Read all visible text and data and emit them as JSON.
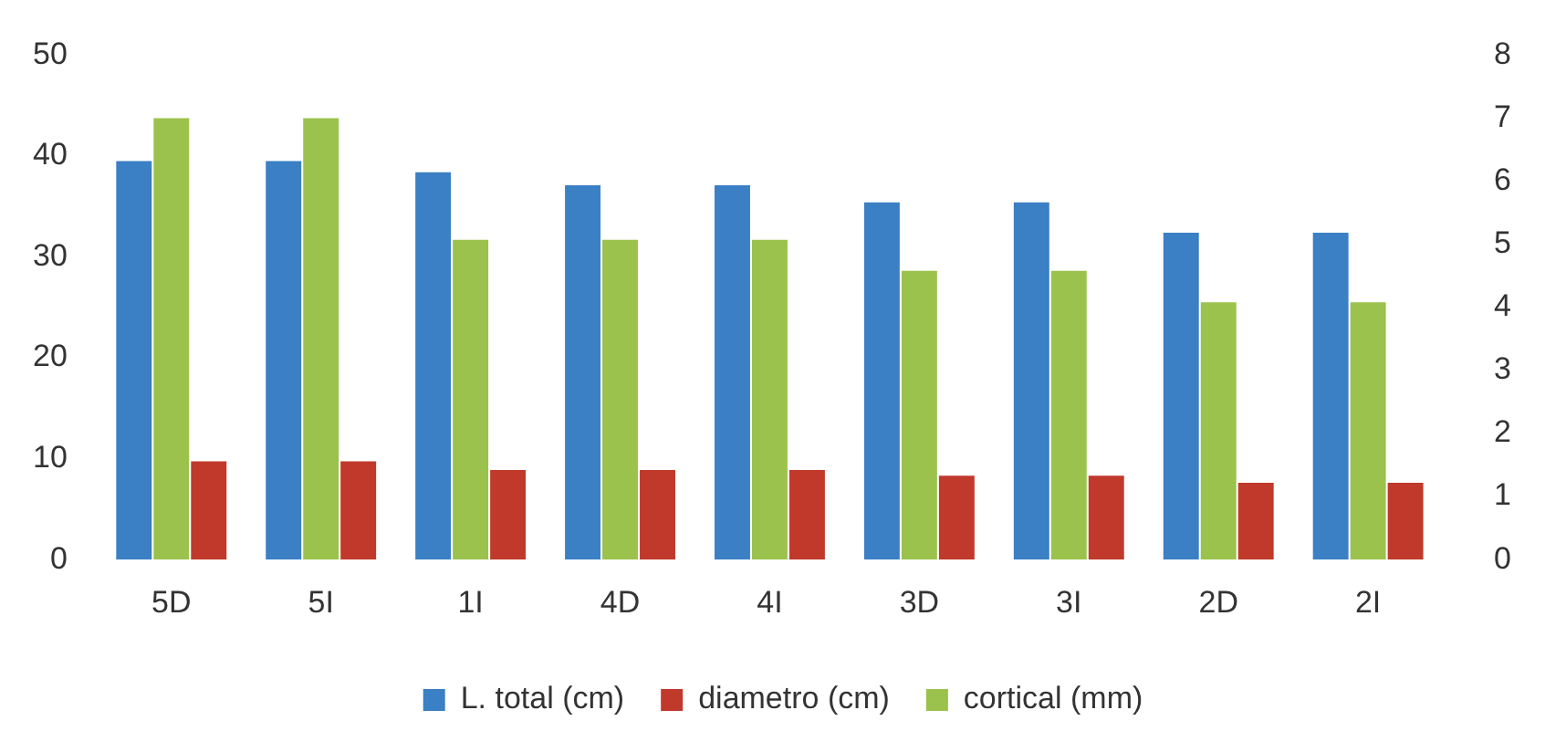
{
  "chart_data": {
    "type": "bar",
    "categories": [
      "5D",
      "5I",
      "1I",
      "4D",
      "4I",
      "3D",
      "3I",
      "2D",
      "2I"
    ],
    "series": [
      {
        "name": "L. total (cm)",
        "color": "#3b7fc4",
        "values": [
          39.5,
          39.5,
          38.4,
          37.1,
          37.1,
          35.4,
          35.4,
          32.4,
          32.4
        ]
      },
      {
        "name": "diametro (cm)",
        "color": "#c0392b",
        "axis": "y2",
        "values": [
          1.56,
          1.56,
          1.42,
          1.42,
          1.42,
          1.33,
          1.33,
          1.22,
          1.22
        ]
      },
      {
        "name": "cortical (mm)",
        "color": "#9bc24c",
        "axis": "y2",
        "values": [
          7,
          7,
          5.07,
          5.07,
          5.07,
          4.58,
          4.58,
          4.08,
          4.08
        ]
      }
    ],
    "ylim": [
      0,
      50
    ],
    "yticks": [
      0,
      10,
      20,
      30,
      40,
      50
    ],
    "y2lim": [
      0,
      8
    ],
    "y2ticks": [
      0,
      1,
      2,
      3,
      4,
      5,
      6,
      7,
      8
    ],
    "grid": false,
    "legend": "bottom"
  }
}
